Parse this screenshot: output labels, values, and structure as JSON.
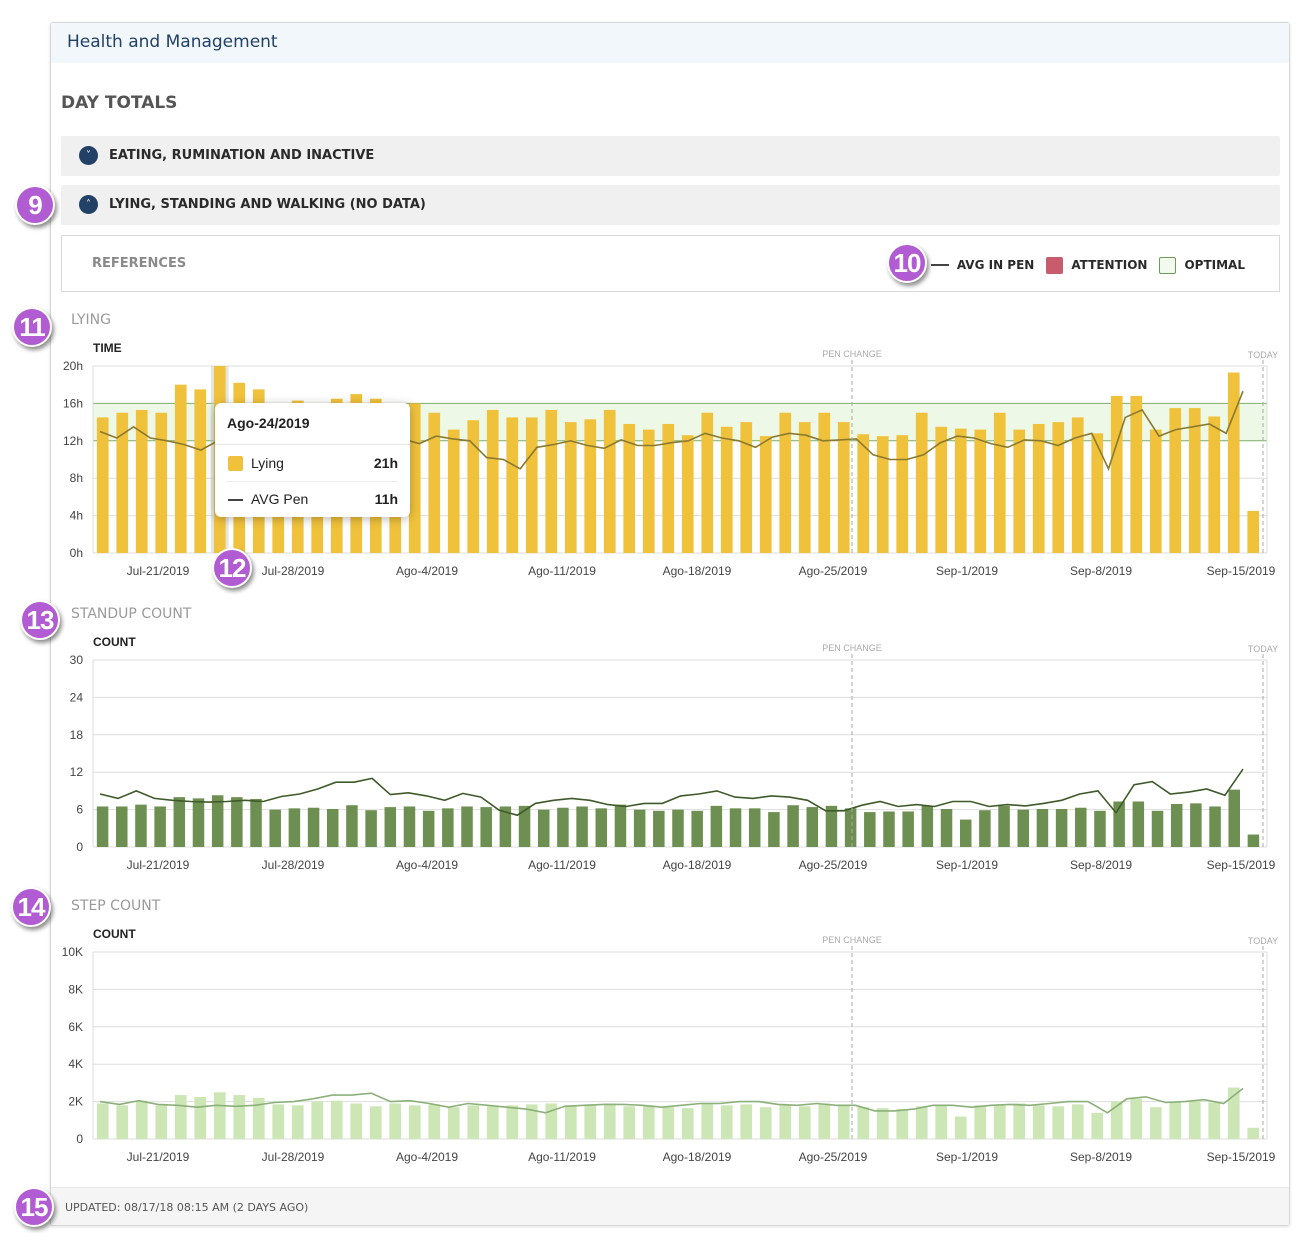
{
  "header": {
    "title": "Health and Management"
  },
  "section_heading": "DAY TOTALS",
  "accordions": [
    {
      "label": "EATING, RUMINATION AND INACTIVE",
      "state": "collapsed",
      "icon": "chevron-down-icon"
    },
    {
      "label": "LYING, STANDING AND WALKING (NO DATA)",
      "state": "expanded",
      "icon": "chevron-up-icon"
    }
  ],
  "references": {
    "label": "REFERENCES",
    "legend": [
      {
        "label": "AVG IN PEN",
        "kind": "line",
        "color": "#444444"
      },
      {
        "label": "ATTENTION",
        "kind": "square",
        "color": "#c85c6c"
      },
      {
        "label": "OPTIMAL",
        "kind": "square",
        "color": "#f2f9ee"
      }
    ]
  },
  "badges": [
    "9",
    "10",
    "11",
    "12",
    "13",
    "14",
    "15"
  ],
  "tooltip": {
    "date": "Ago-24/2019",
    "rows": [
      {
        "name": "Lying",
        "value": "21h"
      },
      {
        "name": "AVG Pen",
        "value": "11h"
      }
    ]
  },
  "footer": {
    "updated": "UPDATED: 08/17/18 08:15 AM (2 DAYS AGO)"
  },
  "chart_data": [
    {
      "type": "bar",
      "title": "LYING",
      "ylabel": "TIME",
      "ylim": [
        0,
        20
      ],
      "yticks": [
        "0h",
        "4h",
        "8h",
        "12h",
        "16h",
        "20h"
      ],
      "xticks": [
        "Jul-21/2019",
        "Jul-28/2019",
        "Ago-4/2019",
        "Ago-11/2019",
        "Ago-18/2019",
        "Ago-25/2019",
        "Sep-1/2019",
        "Sep-8/2019",
        "Sep-15/2019"
      ],
      "optimal_band": [
        12,
        16
      ],
      "highlight_index": 6,
      "annotations": [
        "PEN CHANGE",
        "TODAY"
      ],
      "bar_color": "#f0c23b",
      "line_color": "#8a7a30",
      "series": [
        {
          "name": "Lying",
          "type": "bar",
          "values": [
            14.5,
            15,
            15.3,
            15,
            18,
            17.5,
            20,
            18.2,
            17.5,
            16,
            16.3,
            15.8,
            16.5,
            17,
            16.5,
            15.5,
            16,
            15,
            13.2,
            14.2,
            15.3,
            14.5,
            14.5,
            15.3,
            14,
            14.3,
            15.3,
            13.8,
            13.2,
            13.8,
            12.6,
            15,
            13.5,
            14,
            12.5,
            15,
            14,
            15,
            14,
            12.7,
            12.5,
            12.6,
            15,
            13.5,
            13.3,
            13.2,
            15,
            13.2,
            13.8,
            14,
            14.5,
            12.8,
            16.8,
            16.8,
            13.2,
            15.5,
            15.5,
            14.6,
            19.3,
            4.5
          ]
        },
        {
          "name": "AVG in pen",
          "type": "line",
          "values": [
            13,
            12.3,
            13.5,
            12.3,
            12,
            11.6,
            11,
            12,
            11.5,
            12.1,
            12.6,
            12.3,
            11.8,
            12.4,
            12.3,
            12.2,
            12.6,
            13,
            12.2,
            11.7,
            12.5,
            12.2,
            12,
            10.2,
            10,
            9,
            11.3,
            11.6,
            12,
            11.5,
            11.2,
            12.1,
            11.5,
            11.5,
            11.8,
            12,
            12.8,
            12.3,
            12,
            11.3,
            12.4,
            12.8,
            12.6,
            12,
            12.1,
            12.2,
            10.5,
            10,
            10,
            10.5,
            11.8,
            12.5,
            12.3,
            11.7,
            11.3,
            12.1,
            12,
            11.5,
            12.3,
            12.8,
            9,
            14.5,
            15.3,
            12.5,
            13.2,
            13.5,
            13.8,
            12.8,
            17.3
          ]
        }
      ]
    },
    {
      "type": "bar",
      "title": "STANDUP COUNT",
      "ylabel": "COUNT",
      "ylim": [
        0,
        30
      ],
      "yticks": [
        "0",
        "6",
        "12",
        "18",
        "24",
        "30"
      ],
      "xticks": [
        "Jul-21/2019",
        "Jul-28/2019",
        "Ago-4/2019",
        "Ago-11/2019",
        "Ago-18/2019",
        "Ago-25/2019",
        "Sep-1/2019",
        "Sep-8/2019",
        "Sep-15/2019"
      ],
      "annotations": [
        "PEN CHANGE",
        "TODAY"
      ],
      "bar_color": "#6e8f52",
      "line_color": "#3f5a2a",
      "series": [
        {
          "name": "Standup count",
          "type": "bar",
          "values": [
            6.5,
            6.5,
            6.8,
            6.5,
            8,
            7.8,
            8.3,
            8,
            7.7,
            6,
            6.2,
            6.3,
            6.1,
            6.7,
            5.9,
            6.4,
            6.5,
            5.8,
            6.2,
            6.5,
            6.4,
            6.5,
            6.6,
            6,
            6.3,
            6.5,
            6.2,
            6.8,
            6,
            5.8,
            6,
            5.8,
            6.6,
            6.2,
            6.2,
            5.6,
            6.7,
            6.4,
            6.6,
            6.2,
            5.6,
            5.7,
            5.7,
            6.6,
            6.1,
            4.4,
            5.9,
            6.6,
            6,
            6.1,
            6.1,
            6.3,
            5.8,
            7.3,
            7.3,
            5.8,
            6.9,
            7,
            6.5,
            9.2,
            2
          ]
        },
        {
          "name": "AVG in pen",
          "type": "line",
          "values": [
            8.5,
            7.8,
            9,
            7.8,
            7.5,
            7.3,
            7.2,
            7.3,
            7.5,
            7.3,
            8.1,
            8.5,
            9.3,
            10.4,
            10.4,
            11,
            8.4,
            8.7,
            8.2,
            7.5,
            8.6,
            8,
            5.9,
            5.1,
            7,
            7.5,
            7.8,
            7.5,
            6.8,
            6.5,
            7,
            7,
            8.2,
            8.5,
            9,
            8,
            7.8,
            8.2,
            8,
            7.5,
            5.8,
            5.8,
            6.7,
            7.3,
            6.5,
            6.8,
            6.5,
            7.3,
            7.3,
            6.5,
            6.8,
            6.6,
            7,
            7.5,
            8.5,
            9,
            5.5,
            10,
            10.5,
            8.5,
            8.8,
            9.3,
            8.3,
            12.5
          ]
        }
      ]
    },
    {
      "type": "bar",
      "title": "STEP COUNT",
      "ylabel": "COUNT",
      "ylim": [
        0,
        10000
      ],
      "yticks": [
        "0",
        "2K",
        "4K",
        "6K",
        "8K",
        "10K"
      ],
      "xticks": [
        "Jul-21/2019",
        "Jul-28/2019",
        "Ago-4/2019",
        "Ago-11/2019",
        "Ago-18/2019",
        "Ago-25/2019",
        "Sep-1/2019",
        "Sep-8/2019",
        "Sep-15/2019"
      ],
      "annotations": [
        "PEN CHANGE",
        "TODAY"
      ],
      "bar_color": "#cce7b5",
      "line_color": "#8cb07a",
      "series": [
        {
          "name": "Step count",
          "type": "bar",
          "values": [
            1900,
            1800,
            2050,
            1800,
            2350,
            2250,
            2500,
            2350,
            2200,
            1850,
            1800,
            2000,
            2050,
            1900,
            1750,
            1900,
            1800,
            1850,
            1700,
            1800,
            1750,
            1800,
            1850,
            1900,
            1800,
            1850,
            1900,
            1750,
            1800,
            1700,
            1650,
            1900,
            1800,
            1850,
            1700,
            1850,
            1750,
            1900,
            1800,
            1700,
            1650,
            1600,
            1750,
            1800,
            1200,
            1800,
            1850,
            1900,
            1800,
            1750,
            1850,
            1400,
            2000,
            2150,
            1700,
            2000,
            2000,
            1950,
            2750,
            600
          ]
        },
        {
          "name": "AVG in pen",
          "type": "line",
          "values": [
            2000,
            1850,
            2050,
            1850,
            1800,
            1700,
            1800,
            1750,
            1800,
            1950,
            2000,
            2150,
            2350,
            2350,
            2450,
            2000,
            2050,
            1900,
            1700,
            1900,
            1800,
            1700,
            1600,
            1400,
            1750,
            1800,
            1850,
            1850,
            1800,
            1700,
            1800,
            1900,
            1900,
            2000,
            2000,
            1850,
            1800,
            1900,
            1800,
            1800,
            1500,
            1500,
            1600,
            1800,
            1800,
            1700,
            1800,
            1850,
            1800,
            1900,
            2000,
            2000,
            1400,
            2150,
            2250,
            1950,
            2000,
            2100,
            1900,
            2700
          ]
        }
      ]
    }
  ]
}
